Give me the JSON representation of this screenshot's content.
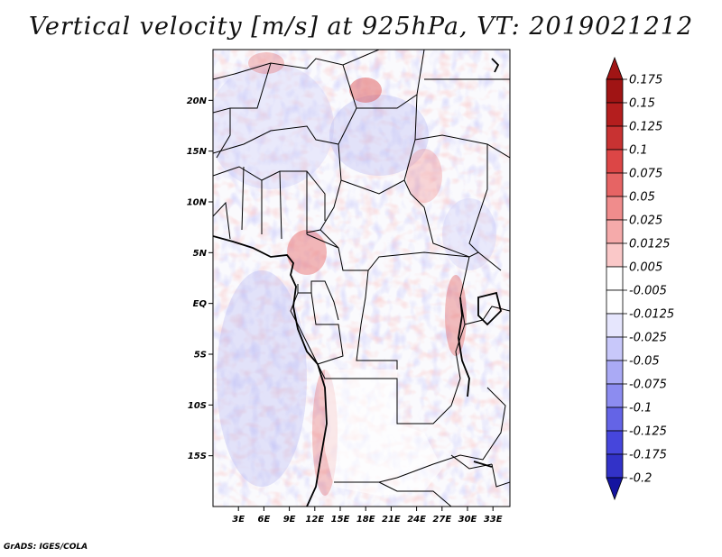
{
  "title": "Vertical velocity [m/s] at 925hPa, VT: 2019021212",
  "footer": "GrADS: IGES/COLA",
  "map": {
    "lon_range": [
      0,
      35
    ],
    "lat_range": [
      -20,
      25
    ],
    "lat_ticks": [
      {
        "value": 20,
        "label": "20N"
      },
      {
        "value": 15,
        "label": "15N"
      },
      {
        "value": 10,
        "label": "10N"
      },
      {
        "value": 5,
        "label": "5N"
      },
      {
        "value": 0,
        "label": "EQ"
      },
      {
        "value": -5,
        "label": "5S"
      },
      {
        "value": -10,
        "label": "10S"
      },
      {
        "value": -15,
        "label": "15S"
      }
    ],
    "lon_ticks": [
      {
        "value": 3,
        "label": "3E"
      },
      {
        "value": 6,
        "label": "6E"
      },
      {
        "value": 9,
        "label": "9E"
      },
      {
        "value": 12,
        "label": "12E"
      },
      {
        "value": 15,
        "label": "15E"
      },
      {
        "value": 18,
        "label": "18E"
      },
      {
        "value": 21,
        "label": "21E"
      },
      {
        "value": 24,
        "label": "24E"
      },
      {
        "value": 27,
        "label": "27E"
      },
      {
        "value": 30,
        "label": "30E"
      },
      {
        "value": 33,
        "label": "33E"
      }
    ]
  },
  "colorbar": {
    "levels": [
      {
        "label": "0.175",
        "color": "#a01414"
      },
      {
        "label": "0.15",
        "color": "#b41e1e"
      },
      {
        "label": "0.125",
        "color": "#c83232"
      },
      {
        "label": "0.1",
        "color": "#dc4646"
      },
      {
        "label": "0.075",
        "color": "#e66464"
      },
      {
        "label": "0.05",
        "color": "#f08c8c"
      },
      {
        "label": "0.025",
        "color": "#f5aaaa"
      },
      {
        "label": "0.0125",
        "color": "#fac8c8"
      },
      {
        "label": "0.005",
        "color": "#fde6e6"
      },
      {
        "label": "-0.005",
        "color": "#ffffff"
      },
      {
        "label": "-0.0125",
        "color": "#e6e6fd"
      },
      {
        "label": "-0.025",
        "color": "#c8c8fa"
      },
      {
        "label": "-0.05",
        "color": "#aaaaf5"
      },
      {
        "label": "-0.075",
        "color": "#8c8cf0"
      },
      {
        "label": "-0.1",
        "color": "#6464e6"
      },
      {
        "label": "-0.125",
        "color": "#4646dc"
      },
      {
        "label": "-0.175",
        "color": "#3232c8"
      },
      {
        "label": "-0.2",
        "color": "#1e1eb4"
      }
    ],
    "top_arrow_color": "#a01414",
    "bottom_arrow_color": "#1414a0"
  }
}
